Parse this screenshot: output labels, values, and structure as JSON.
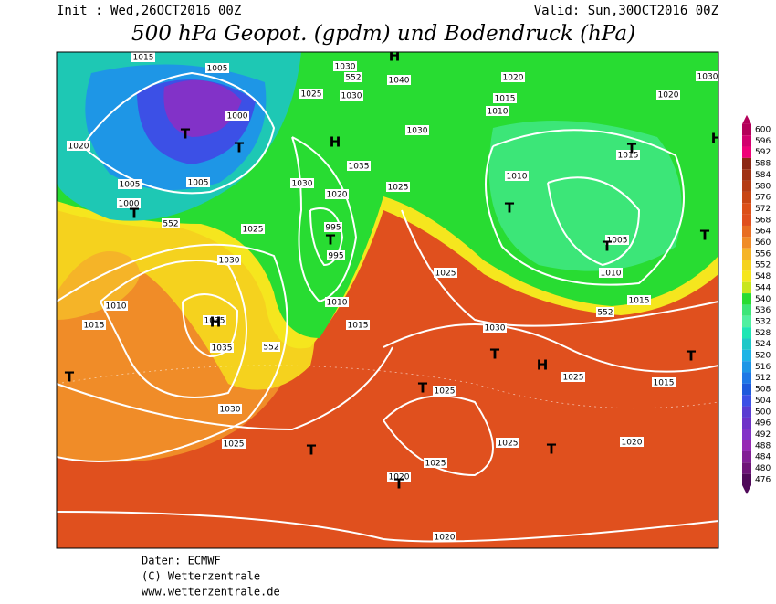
{
  "header": {
    "init": "Init : Wed,26OCT2016 00Z",
    "valid": "Valid: Sun,30OCT2016 00Z",
    "title": "500 hPa Geopot. (gpdm) und Bodendruck (hPa)"
  },
  "map": {
    "pressure_labels": [
      "1015",
      "1005",
      "1030",
      "1040",
      "1025",
      "1030",
      "1000",
      "1020",
      "1030",
      "1035",
      "1005",
      "1005",
      "1030",
      "1025",
      "1000",
      "1020",
      "995",
      "995",
      "1025",
      "1030",
      "1010",
      "1010",
      "1015",
      "1035",
      "1035",
      "1015",
      "1025",
      "1030",
      "1025",
      "1025",
      "1015",
      "1030",
      "1025",
      "1025",
      "1020",
      "1025",
      "1020",
      "1020",
      "1020",
      "1015",
      "1010",
      "1020",
      "1030",
      "1015",
      "1010",
      "1005",
      "1010",
      "1015",
      "552",
      "552",
      "552",
      "552"
    ],
    "markers": [
      "T",
      "T",
      "H",
      "T",
      "T",
      "H",
      "T",
      "T",
      "T",
      "T",
      "H",
      "T",
      "T",
      "T",
      "T",
      "T",
      "T",
      "T",
      "H",
      "H"
    ]
  },
  "colorbar": {
    "ticks": [
      600,
      596,
      592,
      588,
      584,
      580,
      576,
      572,
      568,
      564,
      560,
      556,
      552,
      548,
      544,
      540,
      536,
      532,
      528,
      524,
      520,
      516,
      512,
      508,
      504,
      500,
      496,
      492,
      488,
      484,
      480,
      476
    ]
  },
  "footer": {
    "source": "Daten: ECMWF",
    "copyright": "(C) Wetterzentrale",
    "url": "www.wetterzentrale.de"
  }
}
